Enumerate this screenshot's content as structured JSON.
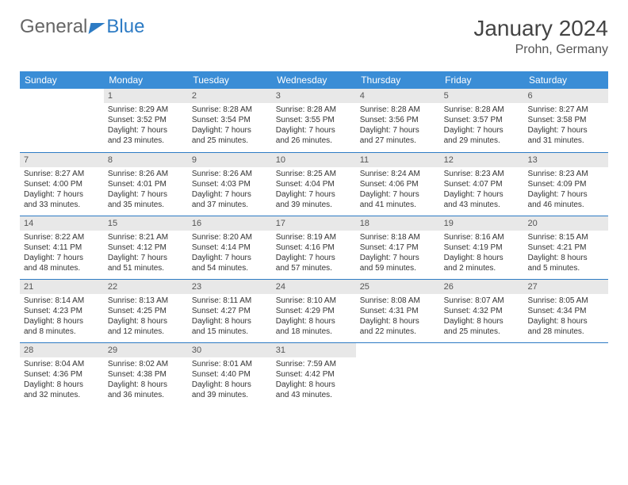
{
  "logo": {
    "text1": "General",
    "text2": "Blue"
  },
  "title": "January 2024",
  "location": "Prohn, Germany",
  "colors": {
    "header_bg": "#3a8dd6",
    "header_text": "#ffffff",
    "daynum_bg": "#e8e8e8",
    "border": "#2d7bc4",
    "logo_accent": "#2d7bc4"
  },
  "weekdays": [
    "Sunday",
    "Monday",
    "Tuesday",
    "Wednesday",
    "Thursday",
    "Friday",
    "Saturday"
  ],
  "weeks": [
    [
      null,
      {
        "n": "1",
        "sr": "Sunrise: 8:29 AM",
        "ss": "Sunset: 3:52 PM",
        "d1": "Daylight: 7 hours",
        "d2": "and 23 minutes."
      },
      {
        "n": "2",
        "sr": "Sunrise: 8:28 AM",
        "ss": "Sunset: 3:54 PM",
        "d1": "Daylight: 7 hours",
        "d2": "and 25 minutes."
      },
      {
        "n": "3",
        "sr": "Sunrise: 8:28 AM",
        "ss": "Sunset: 3:55 PM",
        "d1": "Daylight: 7 hours",
        "d2": "and 26 minutes."
      },
      {
        "n": "4",
        "sr": "Sunrise: 8:28 AM",
        "ss": "Sunset: 3:56 PM",
        "d1": "Daylight: 7 hours",
        "d2": "and 27 minutes."
      },
      {
        "n": "5",
        "sr": "Sunrise: 8:28 AM",
        "ss": "Sunset: 3:57 PM",
        "d1": "Daylight: 7 hours",
        "d2": "and 29 minutes."
      },
      {
        "n": "6",
        "sr": "Sunrise: 8:27 AM",
        "ss": "Sunset: 3:58 PM",
        "d1": "Daylight: 7 hours",
        "d2": "and 31 minutes."
      }
    ],
    [
      {
        "n": "7",
        "sr": "Sunrise: 8:27 AM",
        "ss": "Sunset: 4:00 PM",
        "d1": "Daylight: 7 hours",
        "d2": "and 33 minutes."
      },
      {
        "n": "8",
        "sr": "Sunrise: 8:26 AM",
        "ss": "Sunset: 4:01 PM",
        "d1": "Daylight: 7 hours",
        "d2": "and 35 minutes."
      },
      {
        "n": "9",
        "sr": "Sunrise: 8:26 AM",
        "ss": "Sunset: 4:03 PM",
        "d1": "Daylight: 7 hours",
        "d2": "and 37 minutes."
      },
      {
        "n": "10",
        "sr": "Sunrise: 8:25 AM",
        "ss": "Sunset: 4:04 PM",
        "d1": "Daylight: 7 hours",
        "d2": "and 39 minutes."
      },
      {
        "n": "11",
        "sr": "Sunrise: 8:24 AM",
        "ss": "Sunset: 4:06 PM",
        "d1": "Daylight: 7 hours",
        "d2": "and 41 minutes."
      },
      {
        "n": "12",
        "sr": "Sunrise: 8:23 AM",
        "ss": "Sunset: 4:07 PM",
        "d1": "Daylight: 7 hours",
        "d2": "and 43 minutes."
      },
      {
        "n": "13",
        "sr": "Sunrise: 8:23 AM",
        "ss": "Sunset: 4:09 PM",
        "d1": "Daylight: 7 hours",
        "d2": "and 46 minutes."
      }
    ],
    [
      {
        "n": "14",
        "sr": "Sunrise: 8:22 AM",
        "ss": "Sunset: 4:11 PM",
        "d1": "Daylight: 7 hours",
        "d2": "and 48 minutes."
      },
      {
        "n": "15",
        "sr": "Sunrise: 8:21 AM",
        "ss": "Sunset: 4:12 PM",
        "d1": "Daylight: 7 hours",
        "d2": "and 51 minutes."
      },
      {
        "n": "16",
        "sr": "Sunrise: 8:20 AM",
        "ss": "Sunset: 4:14 PM",
        "d1": "Daylight: 7 hours",
        "d2": "and 54 minutes."
      },
      {
        "n": "17",
        "sr": "Sunrise: 8:19 AM",
        "ss": "Sunset: 4:16 PM",
        "d1": "Daylight: 7 hours",
        "d2": "and 57 minutes."
      },
      {
        "n": "18",
        "sr": "Sunrise: 8:18 AM",
        "ss": "Sunset: 4:17 PM",
        "d1": "Daylight: 7 hours",
        "d2": "and 59 minutes."
      },
      {
        "n": "19",
        "sr": "Sunrise: 8:16 AM",
        "ss": "Sunset: 4:19 PM",
        "d1": "Daylight: 8 hours",
        "d2": "and 2 minutes."
      },
      {
        "n": "20",
        "sr": "Sunrise: 8:15 AM",
        "ss": "Sunset: 4:21 PM",
        "d1": "Daylight: 8 hours",
        "d2": "and 5 minutes."
      }
    ],
    [
      {
        "n": "21",
        "sr": "Sunrise: 8:14 AM",
        "ss": "Sunset: 4:23 PM",
        "d1": "Daylight: 8 hours",
        "d2": "and 8 minutes."
      },
      {
        "n": "22",
        "sr": "Sunrise: 8:13 AM",
        "ss": "Sunset: 4:25 PM",
        "d1": "Daylight: 8 hours",
        "d2": "and 12 minutes."
      },
      {
        "n": "23",
        "sr": "Sunrise: 8:11 AM",
        "ss": "Sunset: 4:27 PM",
        "d1": "Daylight: 8 hours",
        "d2": "and 15 minutes."
      },
      {
        "n": "24",
        "sr": "Sunrise: 8:10 AM",
        "ss": "Sunset: 4:29 PM",
        "d1": "Daylight: 8 hours",
        "d2": "and 18 minutes."
      },
      {
        "n": "25",
        "sr": "Sunrise: 8:08 AM",
        "ss": "Sunset: 4:31 PM",
        "d1": "Daylight: 8 hours",
        "d2": "and 22 minutes."
      },
      {
        "n": "26",
        "sr": "Sunrise: 8:07 AM",
        "ss": "Sunset: 4:32 PM",
        "d1": "Daylight: 8 hours",
        "d2": "and 25 minutes."
      },
      {
        "n": "27",
        "sr": "Sunrise: 8:05 AM",
        "ss": "Sunset: 4:34 PM",
        "d1": "Daylight: 8 hours",
        "d2": "and 28 minutes."
      }
    ],
    [
      {
        "n": "28",
        "sr": "Sunrise: 8:04 AM",
        "ss": "Sunset: 4:36 PM",
        "d1": "Daylight: 8 hours",
        "d2": "and 32 minutes."
      },
      {
        "n": "29",
        "sr": "Sunrise: 8:02 AM",
        "ss": "Sunset: 4:38 PM",
        "d1": "Daylight: 8 hours",
        "d2": "and 36 minutes."
      },
      {
        "n": "30",
        "sr": "Sunrise: 8:01 AM",
        "ss": "Sunset: 4:40 PM",
        "d1": "Daylight: 8 hours",
        "d2": "and 39 minutes."
      },
      {
        "n": "31",
        "sr": "Sunrise: 7:59 AM",
        "ss": "Sunset: 4:42 PM",
        "d1": "Daylight: 8 hours",
        "d2": "and 43 minutes."
      },
      null,
      null,
      null
    ]
  ]
}
